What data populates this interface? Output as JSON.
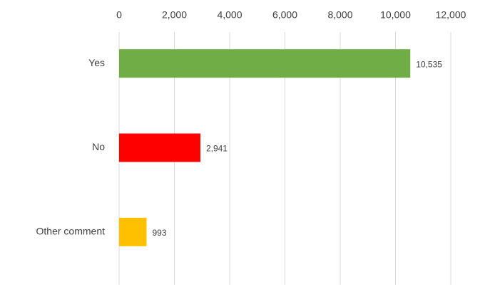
{
  "chart_data": {
    "type": "barh",
    "categories": [
      "Yes",
      "No",
      "Other comment"
    ],
    "values": [
      10535,
      2941,
      993
    ],
    "value_labels": [
      "10,535",
      "2,941",
      "993"
    ],
    "colors": [
      "#70ad47",
      "#ff0000",
      "#ffc000"
    ],
    "xlim": [
      0,
      12000
    ],
    "xticks": [
      0,
      {
        "value": 2000,
        "label": "2,000"
      },
      {
        "value": 4000,
        "label": "4,000"
      },
      {
        "value": 6000,
        "label": "6,000"
      },
      {
        "value": 8000,
        "label": "8,000"
      },
      {
        "value": 10000,
        "label": "10,000"
      },
      {
        "value": 12000,
        "label": "12,000"
      }
    ],
    "grid": true
  }
}
